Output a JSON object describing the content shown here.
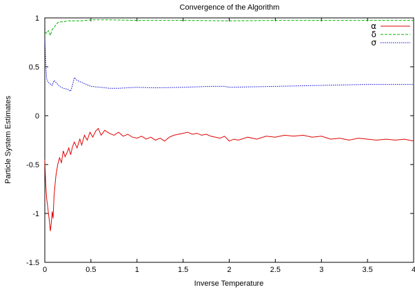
{
  "chart_data": {
    "type": "line",
    "title": "Convergence of the Algorithm",
    "xlabel": "Inverse Temperature",
    "ylabel": "Particle System Estimates",
    "xlim": [
      0,
      4
    ],
    "ylim": [
      -1.5,
      1
    ],
    "xticks": [
      "0",
      "0.5",
      "1",
      "1.5",
      "2",
      "2.5",
      "3",
      "3.5",
      "4"
    ],
    "yticks": [
      "-1.5",
      "-1",
      "-0.5",
      "0",
      "0.5",
      "1"
    ],
    "legend_position": "top-right",
    "grid": false,
    "series": [
      {
        "name": "α",
        "color": "#e00000",
        "dash": "solid",
        "points": [
          [
            0.0,
            -0.45
          ],
          [
            0.01,
            -0.7
          ],
          [
            0.02,
            -0.85
          ],
          [
            0.03,
            -0.92
          ],
          [
            0.04,
            -1.0
          ],
          [
            0.05,
            -1.08
          ],
          [
            0.06,
            -1.18
          ],
          [
            0.07,
            -1.1
          ],
          [
            0.08,
            -0.98
          ],
          [
            0.09,
            -1.05
          ],
          [
            0.1,
            -0.82
          ],
          [
            0.12,
            -0.62
          ],
          [
            0.14,
            -0.5
          ],
          [
            0.16,
            -0.43
          ],
          [
            0.18,
            -0.48
          ],
          [
            0.2,
            -0.36
          ],
          [
            0.22,
            -0.42
          ],
          [
            0.24,
            -0.38
          ],
          [
            0.26,
            -0.33
          ],
          [
            0.28,
            -0.4
          ],
          [
            0.3,
            -0.32
          ],
          [
            0.32,
            -0.27
          ],
          [
            0.35,
            -0.33
          ],
          [
            0.38,
            -0.24
          ],
          [
            0.4,
            -0.3
          ],
          [
            0.43,
            -0.2
          ],
          [
            0.46,
            -0.25
          ],
          [
            0.49,
            -0.17
          ],
          [
            0.52,
            -0.22
          ],
          [
            0.55,
            -0.16
          ],
          [
            0.58,
            -0.13
          ],
          [
            0.61,
            -0.2
          ],
          [
            0.65,
            -0.15
          ],
          [
            0.7,
            -0.18
          ],
          [
            0.75,
            -0.2
          ],
          [
            0.8,
            -0.17
          ],
          [
            0.85,
            -0.21
          ],
          [
            0.9,
            -0.19
          ],
          [
            0.95,
            -0.22
          ],
          [
            1.0,
            -0.23
          ],
          [
            1.05,
            -0.21
          ],
          [
            1.1,
            -0.24
          ],
          [
            1.15,
            -0.22
          ],
          [
            1.2,
            -0.25
          ],
          [
            1.25,
            -0.23
          ],
          [
            1.3,
            -0.26
          ],
          [
            1.35,
            -0.22
          ],
          [
            1.4,
            -0.2
          ],
          [
            1.45,
            -0.19
          ],
          [
            1.5,
            -0.18
          ],
          [
            1.55,
            -0.17
          ],
          [
            1.6,
            -0.19
          ],
          [
            1.65,
            -0.18
          ],
          [
            1.7,
            -0.2
          ],
          [
            1.75,
            -0.19
          ],
          [
            1.8,
            -0.21
          ],
          [
            1.85,
            -0.22
          ],
          [
            1.9,
            -0.23
          ],
          [
            1.95,
            -0.21
          ],
          [
            2.0,
            -0.26
          ],
          [
            2.05,
            -0.24
          ],
          [
            2.1,
            -0.25
          ],
          [
            2.2,
            -0.22
          ],
          [
            2.3,
            -0.24
          ],
          [
            2.4,
            -0.21
          ],
          [
            2.5,
            -0.22
          ],
          [
            2.6,
            -0.2
          ],
          [
            2.7,
            -0.21
          ],
          [
            2.8,
            -0.2
          ],
          [
            2.9,
            -0.22
          ],
          [
            3.0,
            -0.21
          ],
          [
            3.1,
            -0.24
          ],
          [
            3.2,
            -0.23
          ],
          [
            3.3,
            -0.25
          ],
          [
            3.4,
            -0.23
          ],
          [
            3.5,
            -0.24
          ],
          [
            3.6,
            -0.25
          ],
          [
            3.7,
            -0.24
          ],
          [
            3.8,
            -0.25
          ],
          [
            3.9,
            -0.24
          ],
          [
            4.0,
            -0.26
          ]
        ]
      },
      {
        "name": "δ",
        "color": "#00b000",
        "dash": "4,2",
        "points": [
          [
            0.0,
            0.86
          ],
          [
            0.02,
            0.84
          ],
          [
            0.04,
            0.87
          ],
          [
            0.06,
            0.82
          ],
          [
            0.08,
            0.88
          ],
          [
            0.1,
            0.9
          ],
          [
            0.12,
            0.93
          ],
          [
            0.15,
            0.96
          ],
          [
            0.2,
            0.96
          ],
          [
            0.25,
            0.97
          ],
          [
            0.3,
            0.97
          ],
          [
            0.4,
            0.97
          ],
          [
            0.5,
            0.98
          ],
          [
            0.7,
            0.98
          ],
          [
            1.0,
            0.975
          ],
          [
            1.5,
            0.975
          ],
          [
            2.0,
            0.97
          ],
          [
            2.5,
            0.975
          ],
          [
            3.0,
            0.975
          ],
          [
            3.5,
            0.975
          ],
          [
            4.0,
            0.975
          ]
        ]
      },
      {
        "name": "σ",
        "color": "#0000d0",
        "dash": "1.5,1.5",
        "points": [
          [
            0.0,
            0.78
          ],
          [
            0.01,
            0.55
          ],
          [
            0.02,
            0.38
          ],
          [
            0.03,
            0.35
          ],
          [
            0.05,
            0.33
          ],
          [
            0.08,
            0.31
          ],
          [
            0.1,
            0.36
          ],
          [
            0.13,
            0.33
          ],
          [
            0.16,
            0.3
          ],
          [
            0.2,
            0.28
          ],
          [
            0.25,
            0.27
          ],
          [
            0.28,
            0.25
          ],
          [
            0.3,
            0.31
          ],
          [
            0.32,
            0.39
          ],
          [
            0.35,
            0.36
          ],
          [
            0.4,
            0.34
          ],
          [
            0.45,
            0.32
          ],
          [
            0.5,
            0.3
          ],
          [
            0.6,
            0.29
          ],
          [
            0.7,
            0.28
          ],
          [
            0.8,
            0.28
          ],
          [
            1.0,
            0.29
          ],
          [
            1.2,
            0.285
          ],
          [
            1.5,
            0.29
          ],
          [
            1.8,
            0.3
          ],
          [
            1.95,
            0.3
          ],
          [
            2.0,
            0.29
          ],
          [
            2.5,
            0.3
          ],
          [
            3.0,
            0.31
          ],
          [
            3.5,
            0.32
          ],
          [
            4.0,
            0.32
          ]
        ]
      }
    ]
  }
}
